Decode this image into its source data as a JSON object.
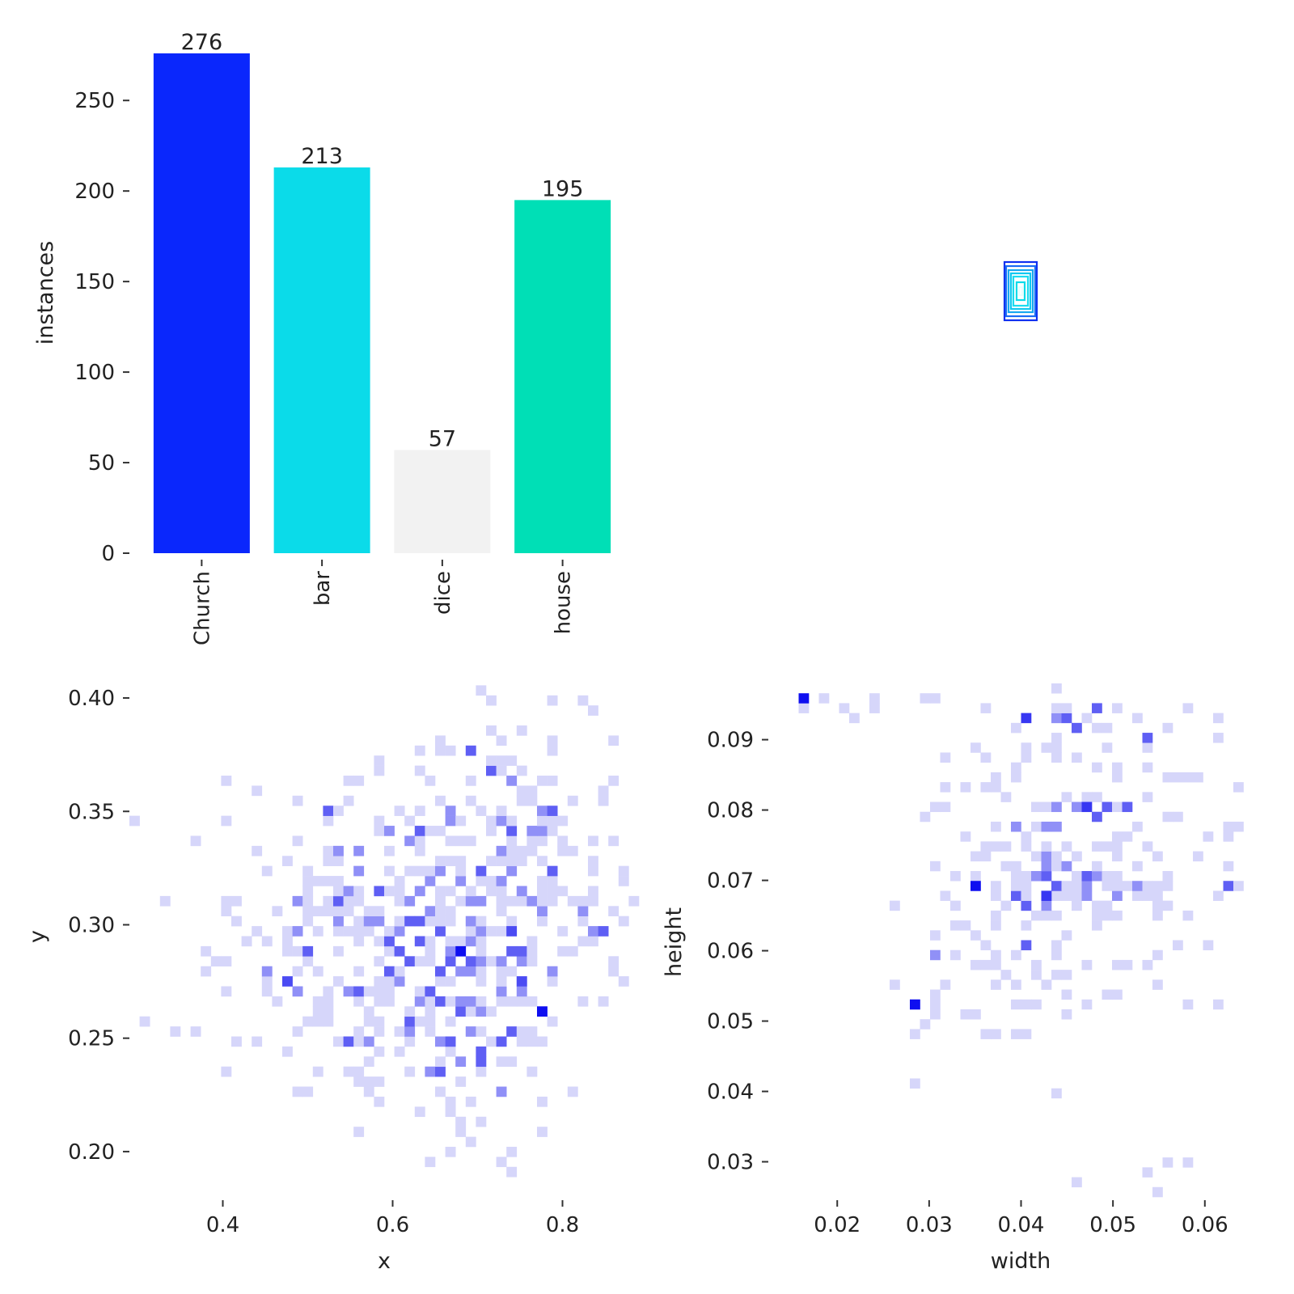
{
  "colors": {
    "church": "#0a27fc",
    "bar": "#0bdbe9",
    "dice": "#f2f2f2",
    "house": "#00dfb6",
    "heat_low": "#d6d6fa",
    "heat_high": "#0f0ff0",
    "tick": "#333333"
  },
  "chart_data": [
    {
      "type": "bar",
      "categories": [
        "Church",
        "bar",
        "dice",
        "house"
      ],
      "values": [
        276,
        213,
        57,
        195
      ],
      "value_labels": [
        "276",
        "213",
        "57",
        "195"
      ],
      "ylabel": "instances",
      "ylim": [
        0,
        276
      ],
      "yticks": [
        0,
        50,
        100,
        150,
        200,
        250
      ],
      "ytick_labels": [
        "0",
        "50",
        "100",
        "150",
        "200",
        "250"
      ],
      "grid": false
    },
    {
      "type": "scatter",
      "description": "overlaid normalized bounding boxes (no axes)",
      "boxes": [
        {
          "width": 0.04,
          "height": 0.072
        },
        {
          "width": 0.036,
          "height": 0.062
        },
        {
          "width": 0.03,
          "height": 0.052
        },
        {
          "width": 0.024,
          "height": 0.044
        },
        {
          "width": 0.018,
          "height": 0.036
        },
        {
          "width": 0.01,
          "height": 0.022
        },
        {
          "width": 0.004,
          "height": 0.01
        }
      ]
    },
    {
      "type": "heatmap",
      "xlabel": "x",
      "ylabel": "y",
      "xlim": [
        0.29,
        0.89
      ],
      "ylim": [
        0.18,
        0.41
      ],
      "xticks": [
        0.4,
        0.6,
        0.8
      ],
      "xtick_labels": [
        "0.4",
        "0.6",
        "0.8"
      ],
      "yticks": [
        0.2,
        0.25,
        0.3,
        0.35,
        0.4
      ],
      "ytick_labels": [
        "0.20",
        "0.25",
        "0.30",
        "0.35",
        "0.40"
      ],
      "clusters": [
        {
          "x": 0.62,
          "y": 0.295,
          "sx": 0.13,
          "sy": 0.035,
          "weight": 1.0
        },
        {
          "x": 0.76,
          "y": 0.34,
          "sx": 0.07,
          "sy": 0.04,
          "weight": 0.5
        },
        {
          "x": 0.68,
          "y": 0.24,
          "sx": 0.06,
          "sy": 0.025,
          "weight": 0.35
        }
      ],
      "hotspots": [
        {
          "x": 0.685,
          "y": 0.29,
          "level": 1.0
        },
        {
          "x": 0.78,
          "y": 0.262,
          "level": 1.0
        },
        {
          "x": 0.472,
          "y": 0.273,
          "level": 0.7
        },
        {
          "x": 0.757,
          "y": 0.273,
          "level": 0.7
        },
        {
          "x": 0.735,
          "y": 0.295,
          "level": 0.7
        }
      ]
    },
    {
      "type": "heatmap",
      "xlabel": "width",
      "ylabel": "height",
      "xlim": [
        0.0125,
        0.0675
      ],
      "ylim": [
        0.025,
        0.098
      ],
      "xticks": [
        0.02,
        0.03,
        0.04,
        0.05,
        0.06
      ],
      "xtick_labels": [
        "0.02",
        "0.03",
        "0.04",
        "0.05",
        "0.06"
      ],
      "yticks": [
        0.03,
        0.04,
        0.05,
        0.06,
        0.07,
        0.08,
        0.09
      ],
      "ytick_labels": [
        "0.03",
        "0.04",
        "0.05",
        "0.06",
        "0.07",
        "0.08",
        "0.09"
      ],
      "clusters": [
        {
          "x": 0.046,
          "y": 0.072,
          "sx": 0.009,
          "sy": 0.011,
          "weight": 1.0
        },
        {
          "x": 0.022,
          "y": 0.095,
          "sx": 0.006,
          "sy": 0.0012,
          "weight": 0.6
        },
        {
          "x": 0.047,
          "y": 0.093,
          "sx": 0.006,
          "sy": 0.002,
          "weight": 0.5
        },
        {
          "x": 0.038,
          "y": 0.052,
          "sx": 0.007,
          "sy": 0.004,
          "weight": 0.45
        },
        {
          "x": 0.056,
          "y": 0.029,
          "sx": 0.0015,
          "sy": 0.004,
          "weight": 0.3
        }
      ],
      "hotspots": [
        {
          "x": 0.0165,
          "y": 0.0955,
          "level": 1.0
        },
        {
          "x": 0.0282,
          "y": 0.0518,
          "level": 1.0
        },
        {
          "x": 0.0356,
          "y": 0.0692,
          "level": 1.0
        },
        {
          "x": 0.0408,
          "y": 0.0928,
          "level": 0.8
        },
        {
          "x": 0.0432,
          "y": 0.0678,
          "level": 0.8
        },
        {
          "x": 0.0475,
          "y": 0.0807,
          "level": 0.8
        }
      ]
    }
  ]
}
